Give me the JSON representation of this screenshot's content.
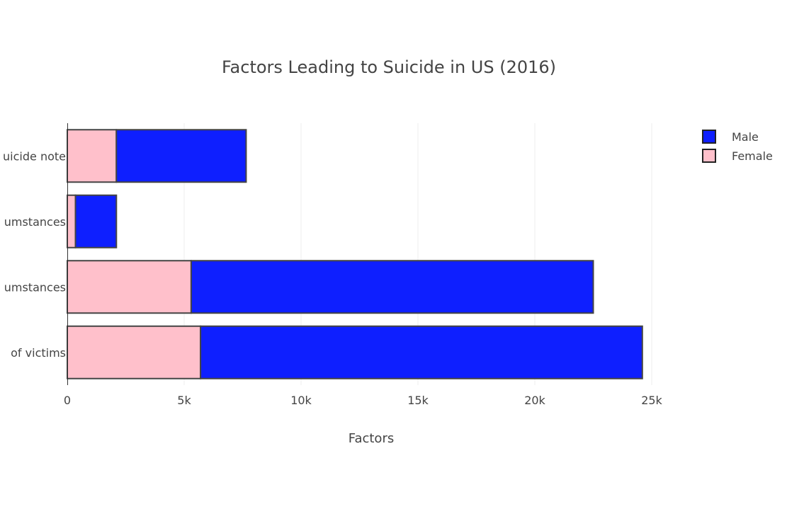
{
  "chart_data": {
    "type": "bar",
    "orientation": "horizontal",
    "barmode": "stack",
    "title": "Factors Leading to Suicide in US (2016)",
    "xlabel": "Factors",
    "ylabel": "",
    "xlim": [
      0,
      25000
    ],
    "x_ticks": [
      0,
      5000,
      10000,
      15000,
      20000,
      25000
    ],
    "x_tick_labels": [
      "0",
      "5k",
      "10k",
      "15k",
      "20k",
      "25k"
    ],
    "categories": [
      "Total number of victims",
      "Known circumstances",
      "Unknown circumstances",
      "Left a suicide note"
    ],
    "category_labels_visible": [
      "of victims",
      "umstances",
      "umstances",
      "uicide note"
    ],
    "series": [
      {
        "name": "Female",
        "color": "#ffc0cb",
        "values": [
          5700,
          5300,
          350,
          2100
        ]
      },
      {
        "name": "Male",
        "color": "#0e1fff",
        "values": [
          18900,
          17200,
          1750,
          5550
        ]
      }
    ],
    "legend": {
      "position": "top-right",
      "entries": [
        {
          "label": "Male",
          "color": "#0e1fff"
        },
        {
          "label": "Female",
          "color": "#ffc0cb"
        }
      ]
    },
    "grid": true
  }
}
